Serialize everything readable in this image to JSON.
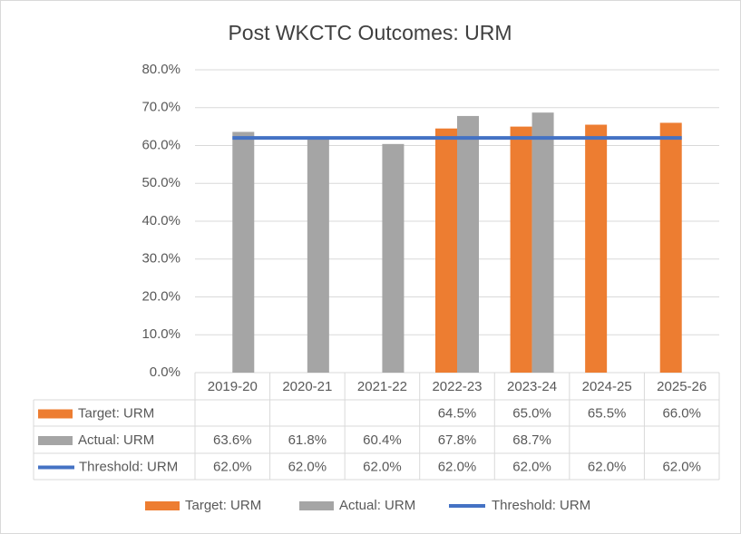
{
  "chart_data": {
    "type": "bar",
    "title": "Post WKCTC Outcomes: URM",
    "categories": [
      "2019-20",
      "2020-21",
      "2021-22",
      "2022-23",
      "2023-24",
      "2024-25",
      "2025-26"
    ],
    "series": [
      {
        "name": "Target: URM",
        "color": "#ed7d31",
        "type": "bar",
        "values": [
          null,
          null,
          null,
          64.5,
          65.0,
          65.5,
          66.0
        ],
        "value_labels": [
          null,
          null,
          null,
          "64.5%",
          "65.0%",
          "65.5%",
          "66.0%"
        ]
      },
      {
        "name": "Actual: URM",
        "color": "#a5a5a5",
        "type": "bar",
        "values": [
          63.6,
          61.8,
          60.4,
          67.8,
          68.7,
          null,
          null
        ],
        "value_labels": [
          "63.6%",
          "61.8%",
          "60.4%",
          "67.8%",
          "68.7%",
          null,
          null
        ]
      },
      {
        "name": "Threshold: URM",
        "color": "#4472c4",
        "type": "line",
        "values": [
          62.0,
          62.0,
          62.0,
          62.0,
          62.0,
          62.0,
          62.0
        ],
        "value_labels": [
          "62.0%",
          "62.0%",
          "62.0%",
          "62.0%",
          "62.0%",
          "62.0%",
          "62.0%"
        ]
      }
    ],
    "ylim": [
      0,
      80
    ],
    "yticks": [
      {
        "value": 0,
        "label": "0.0%"
      },
      {
        "value": 10,
        "label": "10.0%"
      },
      {
        "value": 20,
        "label": "20.0%"
      },
      {
        "value": 30,
        "label": "30.0%"
      },
      {
        "value": 40,
        "label": "40.0%"
      },
      {
        "value": 50,
        "label": "50.0%"
      },
      {
        "value": 60,
        "label": "60.0%"
      },
      {
        "value": 70,
        "label": "70.0%"
      },
      {
        "value": 80,
        "label": "80.0%"
      }
    ],
    "grid": true,
    "legend": "bottom",
    "data_table": true
  }
}
